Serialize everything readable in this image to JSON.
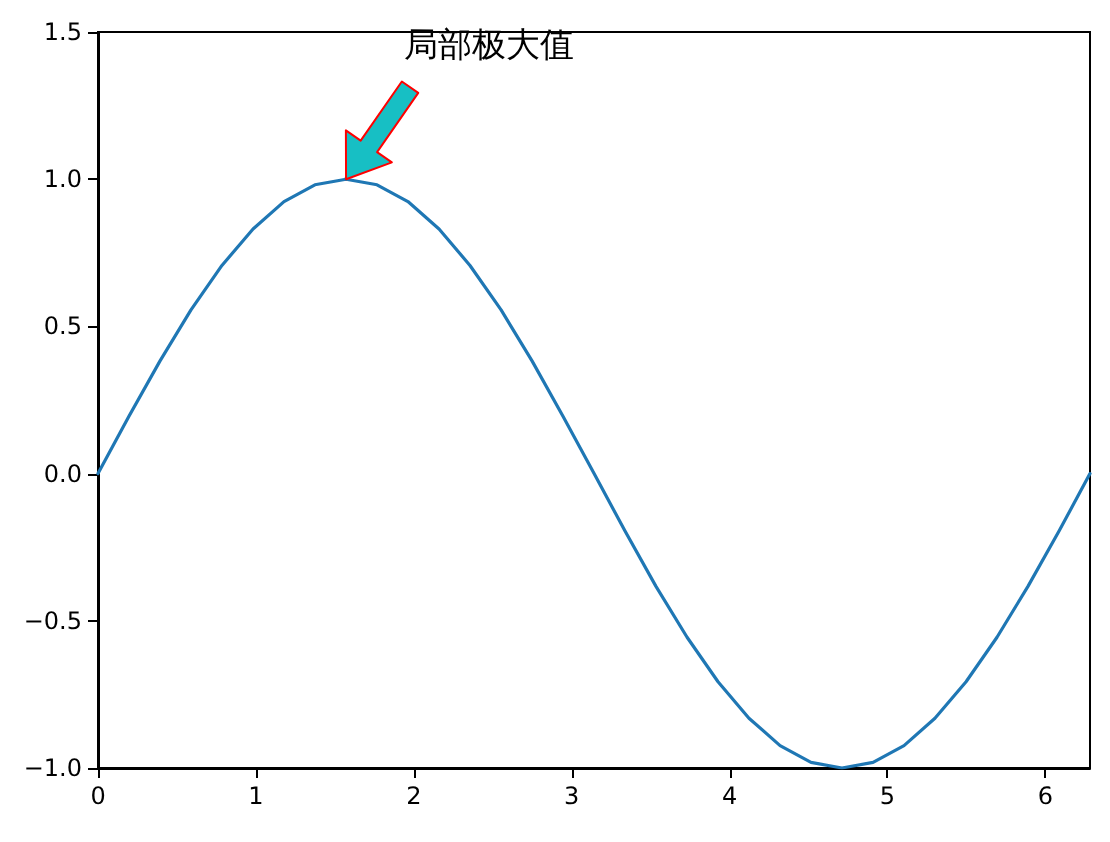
{
  "chart_data": {
    "type": "line",
    "x": [
      0,
      0.196,
      0.393,
      0.589,
      0.785,
      0.982,
      1.178,
      1.374,
      1.571,
      1.767,
      1.963,
      2.16,
      2.356,
      2.553,
      2.749,
      2.945,
      3.142,
      3.338,
      3.534,
      3.731,
      3.927,
      4.123,
      4.32,
      4.516,
      4.712,
      4.909,
      5.105,
      5.301,
      5.498,
      5.694,
      5.89,
      6.087,
      6.283
    ],
    "series": [
      {
        "color": "#1f77b4",
        "values": [
          0,
          0.195,
          0.383,
          0.556,
          0.707,
          0.831,
          0.924,
          0.981,
          1,
          0.981,
          0.924,
          0.831,
          0.707,
          0.556,
          0.383,
          0.195,
          0,
          -0.195,
          -0.383,
          -0.556,
          -0.707,
          -0.831,
          -0.924,
          -0.981,
          -1,
          -0.981,
          -0.924,
          -0.831,
          -0.707,
          -0.556,
          -0.383,
          -0.195,
          0
        ]
      }
    ],
    "xlim": [
      0,
      6.283
    ],
    "xticks": [
      0,
      1,
      2,
      3,
      4,
      5,
      6
    ],
    "ylim": [
      -1,
      1.5
    ],
    "yticks": [
      {
        "value": -1,
        "label": "−1.0"
      },
      {
        "value": -0.5,
        "label": "−0.5"
      },
      {
        "value": 0,
        "label": "0.0"
      },
      {
        "value": 0.5,
        "label": "0.5"
      },
      {
        "value": 1,
        "label": "1.0"
      },
      {
        "value": 1.5,
        "label": "1.5"
      }
    ],
    "annotations": [
      {
        "text": "局部极大值",
        "x": 1.571,
        "y": 1
      }
    ],
    "grid": false,
    "marker": "none",
    "line_style": "solid"
  }
}
